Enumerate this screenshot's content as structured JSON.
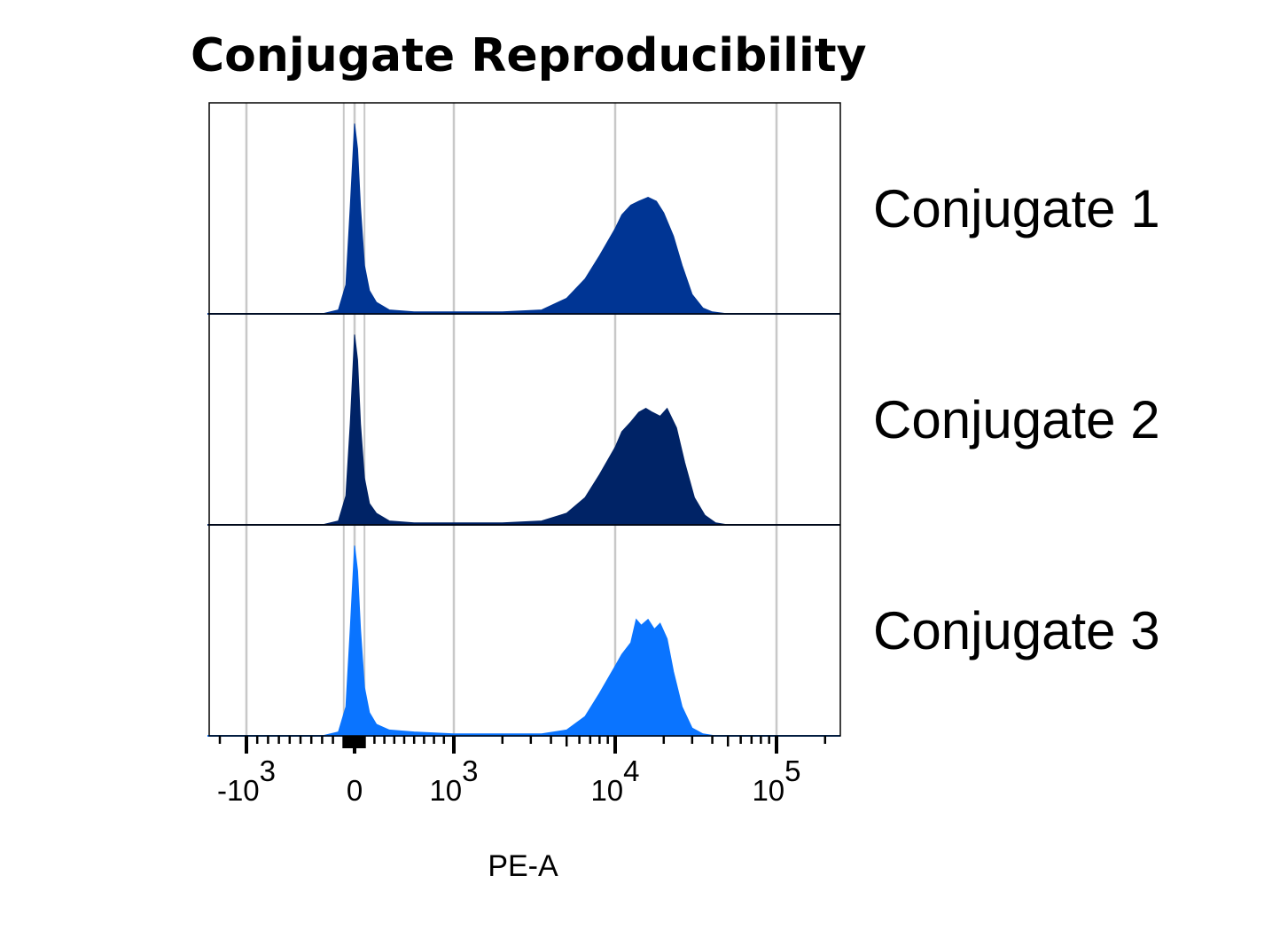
{
  "chart_data": {
    "type": "area",
    "title": "Conjugate Reproducibility",
    "xlabel": "PE-A",
    "ylabel": "",
    "x_scale": "biexponential",
    "xlim": [
      -2000,
      200000
    ],
    "grid": "vertical lines at major ticks",
    "x_ticks": [
      {
        "value": -1000,
        "base": "-10",
        "exp": "3"
      },
      {
        "value": 0,
        "base": "0",
        "exp": ""
      },
      {
        "value": 1000,
        "base": "10",
        "exp": "3"
      },
      {
        "value": 10000,
        "base": "10",
        "exp": "4"
      },
      {
        "value": 100000,
        "base": "10",
        "exp": "5"
      }
    ],
    "series": [
      {
        "name": "Conjugate 1",
        "color": "#003594",
        "x": [
          -300,
          -150,
          -80,
          -40,
          0,
          30,
          60,
          100,
          150,
          220,
          350,
          600,
          1000,
          2000,
          3500,
          5000,
          6500,
          8000,
          10000,
          11000,
          12500,
          14000,
          16000,
          18000,
          20000,
          23000,
          26000,
          30000,
          35000,
          40000,
          50000
        ],
        "y": [
          0,
          0.02,
          0.15,
          0.55,
          0.98,
          0.85,
          0.55,
          0.25,
          0.12,
          0.06,
          0.02,
          0.01,
          0.01,
          0.01,
          0.02,
          0.08,
          0.18,
          0.3,
          0.44,
          0.51,
          0.56,
          0.58,
          0.6,
          0.58,
          0.52,
          0.4,
          0.25,
          0.1,
          0.03,
          0.01,
          0
        ]
      },
      {
        "name": "Conjugate 2",
        "color": "#002366",
        "x": [
          -300,
          -150,
          -80,
          -40,
          0,
          30,
          60,
          100,
          150,
          220,
          350,
          600,
          1000,
          2000,
          3500,
          5000,
          6500,
          8000,
          10000,
          11000,
          12500,
          14000,
          15500,
          17000,
          19000,
          21000,
          24000,
          27000,
          31000,
          36000,
          42000,
          50000
        ],
        "y": [
          0,
          0.02,
          0.15,
          0.52,
          0.98,
          0.85,
          0.52,
          0.24,
          0.11,
          0.06,
          0.02,
          0.01,
          0.01,
          0.01,
          0.02,
          0.06,
          0.14,
          0.26,
          0.4,
          0.48,
          0.53,
          0.58,
          0.6,
          0.58,
          0.56,
          0.6,
          0.5,
          0.32,
          0.14,
          0.05,
          0.01,
          0
        ]
      },
      {
        "name": "Conjugate 3",
        "color": "#0A74FF",
        "x": [
          -300,
          -150,
          -80,
          -40,
          0,
          30,
          60,
          100,
          150,
          220,
          350,
          600,
          1000,
          2000,
          3500,
          5000,
          6500,
          8000,
          10000,
          11000,
          12500,
          13500,
          14500,
          16000,
          17500,
          19000,
          21000,
          23000,
          26000,
          30000,
          35000,
          42000
        ],
        "y": [
          0,
          0.02,
          0.15,
          0.55,
          0.98,
          0.85,
          0.55,
          0.25,
          0.12,
          0.06,
          0.03,
          0.02,
          0.01,
          0.01,
          0.01,
          0.03,
          0.1,
          0.22,
          0.36,
          0.42,
          0.48,
          0.6,
          0.57,
          0.6,
          0.55,
          0.58,
          0.5,
          0.33,
          0.15,
          0.04,
          0.01,
          0
        ]
      }
    ]
  }
}
